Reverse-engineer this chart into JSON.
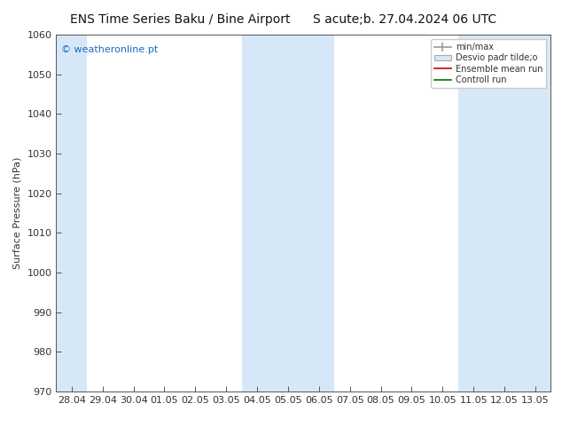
{
  "title_left": "ENS Time Series Baku / Bine Airport",
  "title_right": "S acute;b. 27.04.2024 06 UTC",
  "ylabel": "Surface Pressure (hPa)",
  "ylim": [
    970,
    1060
  ],
  "yticks": [
    970,
    980,
    990,
    1000,
    1010,
    1020,
    1030,
    1040,
    1050,
    1060
  ],
  "x_labels": [
    "28.04",
    "29.04",
    "30.04",
    "01.05",
    "02.05",
    "03.05",
    "04.05",
    "05.05",
    "06.05",
    "07.05",
    "08.05",
    "09.05",
    "10.05",
    "11.05",
    "12.05",
    "13.05"
  ],
  "shaded_indices": [
    0,
    6,
    7,
    8,
    13,
    14,
    15
  ],
  "watermark": "© weatheronline.pt",
  "background_color": "#ffffff",
  "plot_bg_color": "#ffffff",
  "shaded_bg_color": "#d6e8f7",
  "title_fontsize": 10,
  "axis_label_fontsize": 8,
  "tick_fontsize": 8,
  "watermark_color": "#1a6abf",
  "watermark_fontsize": 8,
  "legend_label_color": "#333333"
}
